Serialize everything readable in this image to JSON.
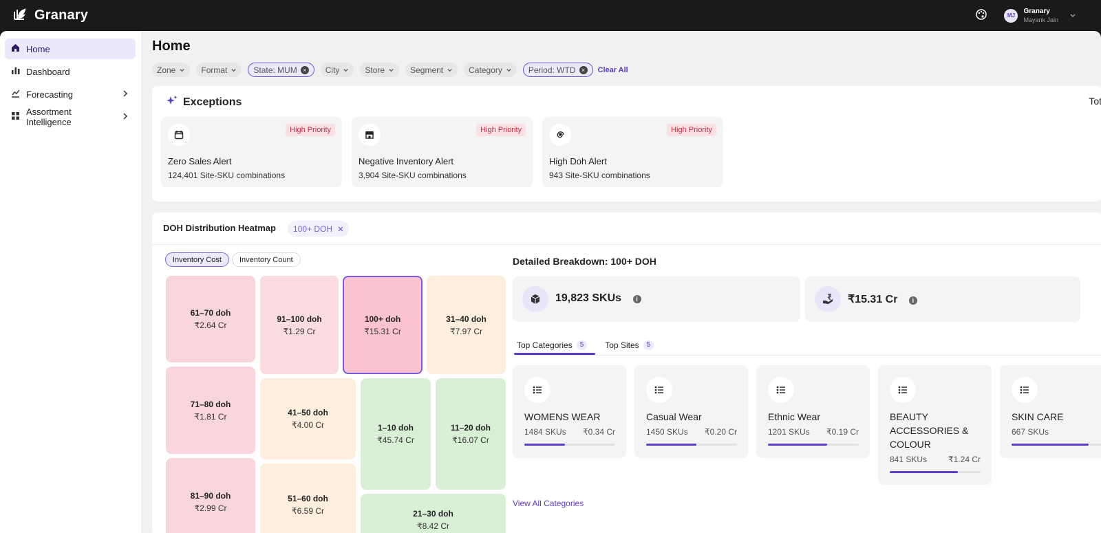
{
  "app": {
    "name": "Granary"
  },
  "user": {
    "initials": "MJ",
    "org": "Granary",
    "name": "Mayank Jain"
  },
  "sidebar": {
    "items": [
      {
        "label": "Home"
      },
      {
        "label": "Dashboard"
      },
      {
        "label": "Forecasting"
      },
      {
        "label": "Assortment Intelligence"
      }
    ]
  },
  "page": {
    "title": "Home"
  },
  "filters": {
    "zone": "Zone",
    "format": "Format",
    "state": "State: MUM",
    "city": "City",
    "store": "Store",
    "segment": "Segment",
    "category": "Category",
    "period": "Period: WTD",
    "clear_all": "Clear All"
  },
  "exceptions": {
    "title": "Exceptions",
    "total_label": "Tot",
    "alerts": [
      {
        "title": "Zero Sales Alert",
        "subtitle": "124,401 Site-SKU combinations",
        "priority": "High Priority",
        "icon": "calendar-icon"
      },
      {
        "title": "Negative Inventory Alert",
        "subtitle": "3,904 Site-SKU combinations",
        "priority": "High Priority",
        "icon": "store-icon"
      },
      {
        "title": "High Doh Alert",
        "subtitle": "943 Site-SKU combinations",
        "priority": "High Priority",
        "icon": "spiral-icon"
      }
    ]
  },
  "heatmap": {
    "title": "DOH Distribution Heatmap",
    "active_filter": "100+ DOH",
    "toggles": {
      "cost": "Inventory Cost",
      "count": "Inventory Count"
    },
    "tiles": [
      {
        "label": "61–70 doh",
        "value": "₹2.64 Cr"
      },
      {
        "label": "91–100 doh",
        "value": "₹1.29 Cr"
      },
      {
        "label": "100+ doh",
        "value": "₹15.31 Cr"
      },
      {
        "label": "31–40 doh",
        "value": "₹7.97 Cr"
      },
      {
        "label": "71–80 doh",
        "value": "₹1.81 Cr"
      },
      {
        "label": "41–50 doh",
        "value": "₹4.00 Cr"
      },
      {
        "label": "1–10 doh",
        "value": "₹45.74 Cr"
      },
      {
        "label": "11–20 doh",
        "value": "₹16.07 Cr"
      },
      {
        "label": "81–90 doh",
        "value": "₹2.99 Cr"
      },
      {
        "label": "51–60 doh",
        "value": "₹6.59 Cr"
      },
      {
        "label": "21–30 doh",
        "value": "₹8.42 Cr"
      }
    ]
  },
  "breakdown": {
    "title": "Detailed Breakdown: 100+ DOH",
    "skus": "19,823 SKUs",
    "cost": "₹15.31 Cr",
    "tabs": [
      {
        "label": "Top Categories",
        "count": "5"
      },
      {
        "label": "Top Sites",
        "count": "5"
      }
    ],
    "categories": [
      {
        "name": "WOMENS WEAR",
        "skus": "1484 SKUs",
        "value": "₹0.34 Cr",
        "share": 0.45
      },
      {
        "name": "Casual Wear",
        "skus": "1450 SKUs",
        "value": "₹0.20 Cr",
        "share": 0.55
      },
      {
        "name": "Ethnic Wear",
        "skus": "1201 SKUs",
        "value": "₹0.19 Cr",
        "share": 0.65
      },
      {
        "name": "BEAUTY ACCESSORIES & COLOUR",
        "skus": "841 SKUs",
        "value": "₹1.24 Cr",
        "share": 0.75
      },
      {
        "name": "SKIN CARE",
        "skus": "667 SKUs",
        "value": "",
        "share": 0.85
      }
    ],
    "view_all": "View All Categories"
  }
}
